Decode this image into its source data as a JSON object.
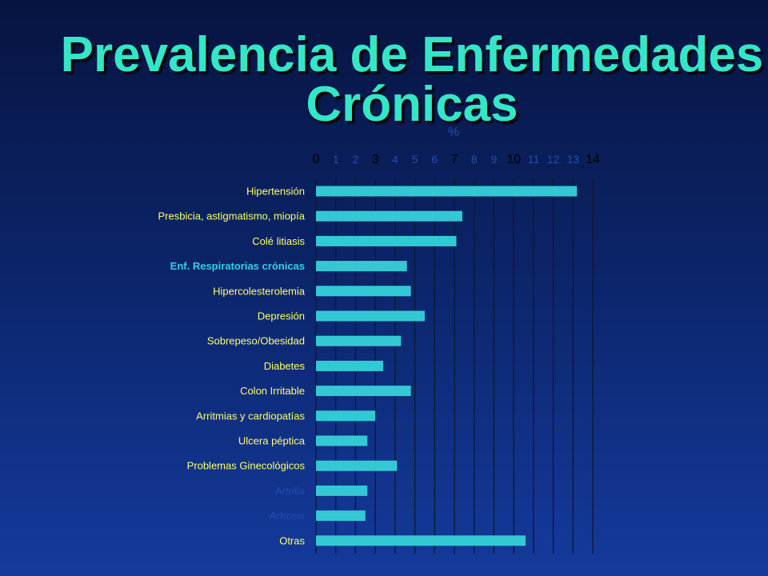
{
  "title_line1": "Prevalencia de Enfermedades",
  "title_line2": "Crónicas",
  "chart_data": {
    "type": "bar",
    "orientation": "horizontal",
    "unit_label": "%",
    "xlim": [
      0,
      14
    ],
    "ticks": [
      0,
      1,
      2,
      3,
      4,
      5,
      6,
      7,
      8,
      9,
      10,
      11,
      12,
      13,
      14
    ],
    "highlighted_ticks": [
      0,
      3,
      7,
      10,
      14
    ],
    "grid": true,
    "categories": [
      "Hipertensión",
      "Presbicia, astigmatismo, miopía",
      "Colé litiasis",
      "Enf. Respiratorias crónicas",
      "Hipercolesterolemia",
      "Depresión",
      "Sobrepeso/Obesidad",
      "Diabetes",
      "Colon  Irritable",
      "Arritmias y cardiopatías",
      "Ulcera péptica",
      "Problemas Ginecológicos",
      "Artritis",
      "Artrosis",
      "Otras"
    ],
    "values": [
      13.2,
      7.4,
      7.1,
      4.6,
      4.8,
      5.5,
      4.3,
      3.4,
      4.8,
      3.0,
      2.6,
      4.1,
      2.6,
      2.5,
      10.6
    ],
    "label_colors": {
      "default": "#ffff66",
      "highlight": "#33d0e0",
      "muted": "#1f4fb0"
    },
    "label_styles": [
      "default",
      "default",
      "default",
      "highlight",
      "default",
      "default",
      "default",
      "default",
      "default",
      "default",
      "default",
      "default",
      "muted",
      "muted",
      "default"
    ],
    "colors": {
      "bar": "#33c9d4",
      "grid": "#101830",
      "tick_highlight": "#000000",
      "tick_muted": "#1f4fb0",
      "unit_label": "#1f4fb0"
    }
  }
}
